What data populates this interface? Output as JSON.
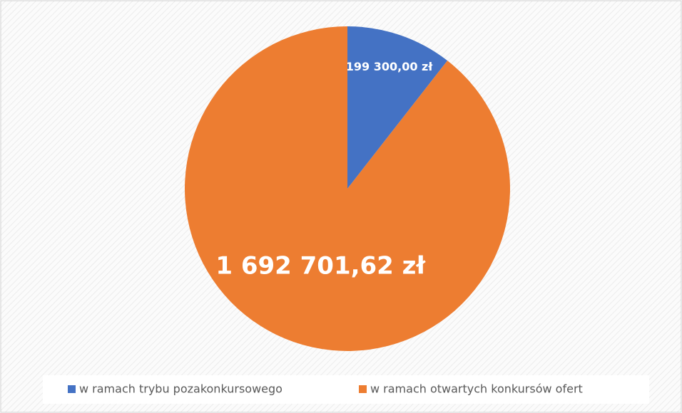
{
  "chart_data": {
    "type": "pie",
    "categories": [
      "w ramach trybu pozakonkursowego",
      "w ramach otwartych konkursów ofert"
    ],
    "values": [
      199300.0,
      1692701.62
    ],
    "value_labels": [
      "199 300,00 zł",
      "1 692 701,62 zł"
    ],
    "colors": [
      "#4472c4",
      "#ed7d31"
    ],
    "legend": "bottom"
  }
}
